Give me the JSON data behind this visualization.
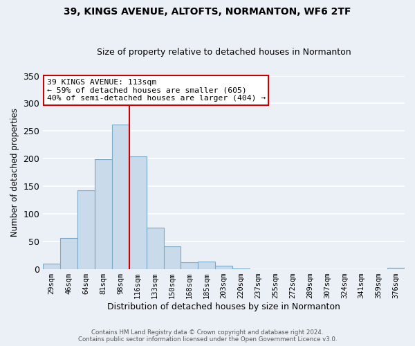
{
  "title": "39, KINGS AVENUE, ALTOFTS, NORMANTON, WF6 2TF",
  "subtitle": "Size of property relative to detached houses in Normanton",
  "xlabel": "Distribution of detached houses by size in Normanton",
  "ylabel": "Number of detached properties",
  "bin_labels": [
    "29sqm",
    "46sqm",
    "64sqm",
    "81sqm",
    "98sqm",
    "116sqm",
    "133sqm",
    "150sqm",
    "168sqm",
    "185sqm",
    "203sqm",
    "220sqm",
    "237sqm",
    "255sqm",
    "272sqm",
    "289sqm",
    "307sqm",
    "324sqm",
    "341sqm",
    "359sqm",
    "376sqm"
  ],
  "bar_heights": [
    10,
    57,
    143,
    199,
    262,
    204,
    75,
    41,
    13,
    14,
    6,
    1,
    0,
    0,
    0,
    0,
    0,
    0,
    0,
    0,
    2
  ],
  "bar_color": "#c9daea",
  "bar_edge_color": "#7aaac8",
  "background_color": "#eaf0f6",
  "grid_color": "#ffffff",
  "vline_x_index": 5,
  "vline_color": "#cc0000",
  "annotation_text": "39 KINGS AVENUE: 113sqm\n← 59% of detached houses are smaller (605)\n40% of semi-detached houses are larger (404) →",
  "annotation_box_color": "#ffffff",
  "annotation_box_edge_color": "#cc0000",
  "ylim": [
    0,
    350
  ],
  "yticks": [
    0,
    50,
    100,
    150,
    200,
    250,
    300,
    350
  ],
  "footer_line1": "Contains HM Land Registry data © Crown copyright and database right 2024.",
  "footer_line2": "Contains public sector information licensed under the Open Government Licence v3.0."
}
